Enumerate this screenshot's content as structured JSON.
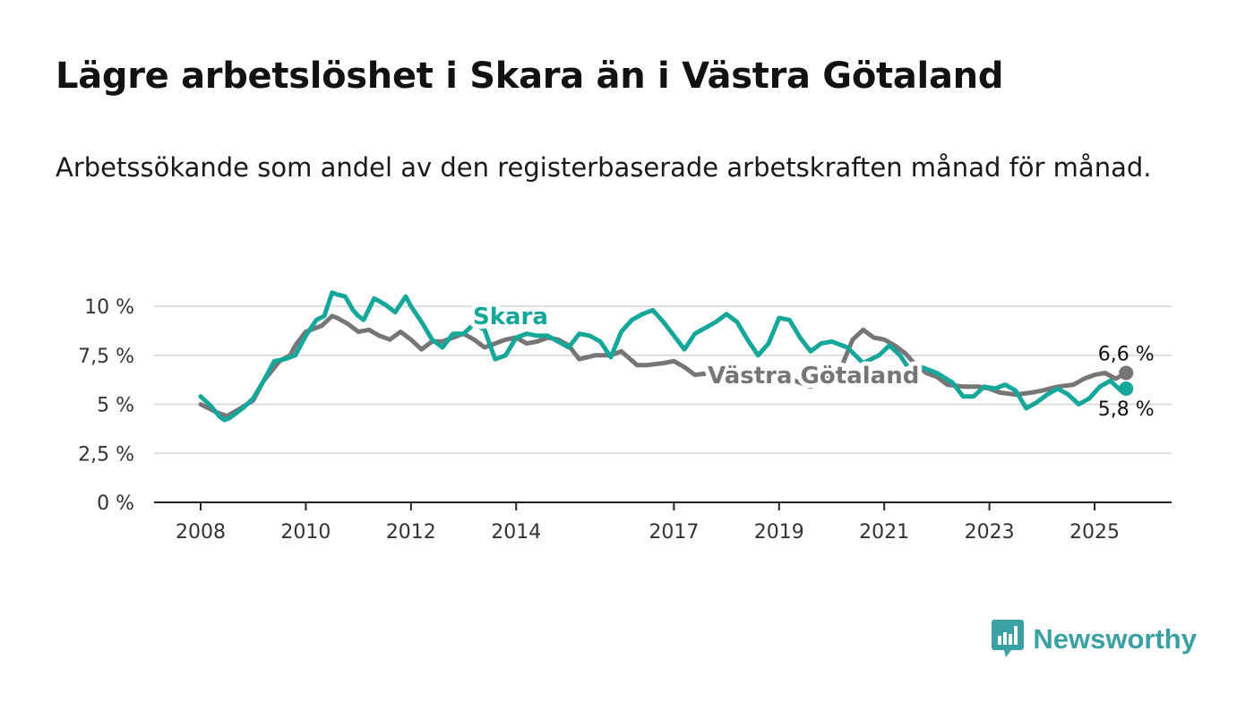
{
  "title": "Lägre arbetslöshet i Skara än i Västra Götaland",
  "subtitle": "Arbetssökande som andel av den registerbaserade arbetskraften månad för månad.",
  "brand": {
    "name": "Newsworthy",
    "icon": "newsworthy-logo-icon",
    "color": "#3aa1a4"
  },
  "chart_data": {
    "type": "line",
    "x_unit": "year",
    "xlim": [
      2007.1,
      2026.5
    ],
    "ylim": [
      0,
      10
    ],
    "yticks": [
      {
        "value": 0,
        "label": "0 %"
      },
      {
        "value": 2.5,
        "label": "2,5 %"
      },
      {
        "value": 5,
        "label": "5 %"
      },
      {
        "value": 7.5,
        "label": "7,5 %"
      },
      {
        "value": 10,
        "label": "10 %"
      }
    ],
    "xticks": [
      {
        "value": 2008,
        "label": "2008"
      },
      {
        "value": 2010,
        "label": "2010"
      },
      {
        "value": 2012,
        "label": "2012"
      },
      {
        "value": 2014,
        "label": "2014"
      },
      {
        "value": 2017,
        "label": "2017"
      },
      {
        "value": 2019,
        "label": "2019"
      },
      {
        "value": 2021,
        "label": "2021"
      },
      {
        "value": 2023,
        "label": "2023"
      },
      {
        "value": 2025,
        "label": "2025"
      }
    ],
    "grid": true,
    "series": [
      {
        "name": "Västra Götaland",
        "color": "#777577",
        "end_label": "6,6 %",
        "points": [
          [
            2008.0,
            5.0
          ],
          [
            2008.3,
            4.6
          ],
          [
            2008.5,
            4.4
          ],
          [
            2008.7,
            4.7
          ],
          [
            2009.0,
            5.2
          ],
          [
            2009.2,
            6.2
          ],
          [
            2009.5,
            7.2
          ],
          [
            2009.7,
            7.5
          ],
          [
            2009.8,
            8.0
          ],
          [
            2010.0,
            8.7
          ],
          [
            2010.3,
            9.0
          ],
          [
            2010.5,
            9.5
          ],
          [
            2010.6,
            9.4
          ],
          [
            2010.8,
            9.1
          ],
          [
            2011.0,
            8.7
          ],
          [
            2011.2,
            8.8
          ],
          [
            2011.4,
            8.5
          ],
          [
            2011.6,
            8.3
          ],
          [
            2011.8,
            8.7
          ],
          [
            2012.0,
            8.3
          ],
          [
            2012.2,
            7.8
          ],
          [
            2012.4,
            8.2
          ],
          [
            2012.6,
            8.2
          ],
          [
            2012.8,
            8.4
          ],
          [
            2013.0,
            8.6
          ],
          [
            2013.2,
            8.3
          ],
          [
            2013.4,
            7.9
          ],
          [
            2013.6,
            8.1
          ],
          [
            2013.8,
            8.3
          ],
          [
            2014.0,
            8.4
          ],
          [
            2014.2,
            8.1
          ],
          [
            2014.4,
            8.2
          ],
          [
            2014.6,
            8.4
          ],
          [
            2014.8,
            8.3
          ],
          [
            2015.0,
            8.0
          ],
          [
            2015.2,
            7.3
          ],
          [
            2015.5,
            7.5
          ],
          [
            2015.8,
            7.5
          ],
          [
            2016.0,
            7.7
          ],
          [
            2016.3,
            7.0
          ],
          [
            2016.5,
            7.0
          ],
          [
            2016.8,
            7.1
          ],
          [
            2017.0,
            7.2
          ],
          [
            2017.2,
            6.9
          ],
          [
            2017.4,
            6.5
          ],
          [
            2017.7,
            6.6
          ],
          [
            2018.0,
            6.7
          ],
          [
            2018.3,
            6.6
          ],
          [
            2018.5,
            6.4
          ],
          [
            2018.8,
            6.1
          ],
          [
            2019.0,
            6.4
          ],
          [
            2019.3,
            6.2
          ],
          [
            2019.6,
            5.9
          ],
          [
            2020.0,
            6.5
          ],
          [
            2020.2,
            7.0
          ],
          [
            2020.4,
            8.3
          ],
          [
            2020.6,
            8.8
          ],
          [
            2020.8,
            8.4
          ],
          [
            2021.0,
            8.3
          ],
          [
            2021.2,
            8.0
          ],
          [
            2021.4,
            7.6
          ],
          [
            2021.6,
            7.0
          ],
          [
            2021.8,
            6.6
          ],
          [
            2022.0,
            6.4
          ],
          [
            2022.2,
            6.0
          ],
          [
            2022.5,
            5.9
          ],
          [
            2022.8,
            5.9
          ],
          [
            2023.0,
            5.8
          ],
          [
            2023.2,
            5.6
          ],
          [
            2023.5,
            5.5
          ],
          [
            2023.8,
            5.6
          ],
          [
            2024.0,
            5.7
          ],
          [
            2024.3,
            5.9
          ],
          [
            2024.6,
            6.0
          ],
          [
            2024.8,
            6.3
          ],
          [
            2025.0,
            6.5
          ],
          [
            2025.2,
            6.6
          ],
          [
            2025.4,
            6.3
          ],
          [
            2025.6,
            6.6
          ]
        ]
      },
      {
        "name": "Skara",
        "color": "#16a79b",
        "end_label": "5,8 %",
        "points": [
          [
            2008.0,
            5.4
          ],
          [
            2008.2,
            4.9
          ],
          [
            2008.35,
            4.4
          ],
          [
            2008.45,
            4.2
          ],
          [
            2008.55,
            4.3
          ],
          [
            2008.8,
            4.8
          ],
          [
            2009.0,
            5.3
          ],
          [
            2009.2,
            6.2
          ],
          [
            2009.4,
            7.2
          ],
          [
            2009.6,
            7.3
          ],
          [
            2009.8,
            7.5
          ],
          [
            2010.0,
            8.5
          ],
          [
            2010.2,
            9.3
          ],
          [
            2010.35,
            9.5
          ],
          [
            2010.5,
            10.7
          ],
          [
            2010.6,
            10.6
          ],
          [
            2010.75,
            10.5
          ],
          [
            2010.9,
            9.8
          ],
          [
            2011.0,
            9.5
          ],
          [
            2011.1,
            9.3
          ],
          [
            2011.3,
            10.4
          ],
          [
            2011.5,
            10.1
          ],
          [
            2011.7,
            9.7
          ],
          [
            2011.9,
            10.5
          ],
          [
            2012.0,
            10.0
          ],
          [
            2012.2,
            9.2
          ],
          [
            2012.4,
            8.3
          ],
          [
            2012.6,
            7.9
          ],
          [
            2012.8,
            8.6
          ],
          [
            2013.0,
            8.6
          ],
          [
            2013.2,
            9.1
          ],
          [
            2013.4,
            8.8
          ],
          [
            2013.6,
            7.3
          ],
          [
            2013.8,
            7.5
          ],
          [
            2014.0,
            8.4
          ],
          [
            2014.2,
            8.6
          ],
          [
            2014.4,
            8.5
          ],
          [
            2014.6,
            8.5
          ],
          [
            2014.8,
            8.2
          ],
          [
            2015.0,
            7.9
          ],
          [
            2015.2,
            8.6
          ],
          [
            2015.4,
            8.5
          ],
          [
            2015.6,
            8.2
          ],
          [
            2015.8,
            7.4
          ],
          [
            2016.0,
            8.7
          ],
          [
            2016.2,
            9.3
          ],
          [
            2016.4,
            9.6
          ],
          [
            2016.6,
            9.8
          ],
          [
            2016.8,
            9.2
          ],
          [
            2017.0,
            8.5
          ],
          [
            2017.2,
            7.8
          ],
          [
            2017.4,
            8.6
          ],
          [
            2017.6,
            8.9
          ],
          [
            2017.8,
            9.2
          ],
          [
            2018.0,
            9.6
          ],
          [
            2018.2,
            9.2
          ],
          [
            2018.4,
            8.3
          ],
          [
            2018.6,
            7.5
          ],
          [
            2018.8,
            8.1
          ],
          [
            2019.0,
            9.4
          ],
          [
            2019.2,
            9.3
          ],
          [
            2019.4,
            8.4
          ],
          [
            2019.6,
            7.7
          ],
          [
            2019.8,
            8.1
          ],
          [
            2020.0,
            8.2
          ],
          [
            2020.3,
            7.9
          ],
          [
            2020.6,
            7.1
          ],
          [
            2020.9,
            7.5
          ],
          [
            2021.1,
            8.0
          ],
          [
            2021.3,
            7.5
          ],
          [
            2021.5,
            6.7
          ],
          [
            2021.7,
            6.9
          ],
          [
            2022.0,
            6.6
          ],
          [
            2022.3,
            6.1
          ],
          [
            2022.5,
            5.4
          ],
          [
            2022.7,
            5.4
          ],
          [
            2022.9,
            5.9
          ],
          [
            2023.1,
            5.8
          ],
          [
            2023.3,
            6.0
          ],
          [
            2023.5,
            5.7
          ],
          [
            2023.7,
            4.8
          ],
          [
            2023.9,
            5.1
          ],
          [
            2024.1,
            5.5
          ],
          [
            2024.3,
            5.8
          ],
          [
            2024.5,
            5.5
          ],
          [
            2024.7,
            5.0
          ],
          [
            2024.9,
            5.3
          ],
          [
            2025.1,
            5.9
          ],
          [
            2025.3,
            6.2
          ],
          [
            2025.5,
            5.7
          ],
          [
            2025.6,
            5.8
          ]
        ]
      }
    ],
    "annotations": [
      {
        "text": "Skara",
        "series": "Skara"
      },
      {
        "text": "Västra Götaland",
        "series": "Västra Götaland"
      }
    ]
  }
}
